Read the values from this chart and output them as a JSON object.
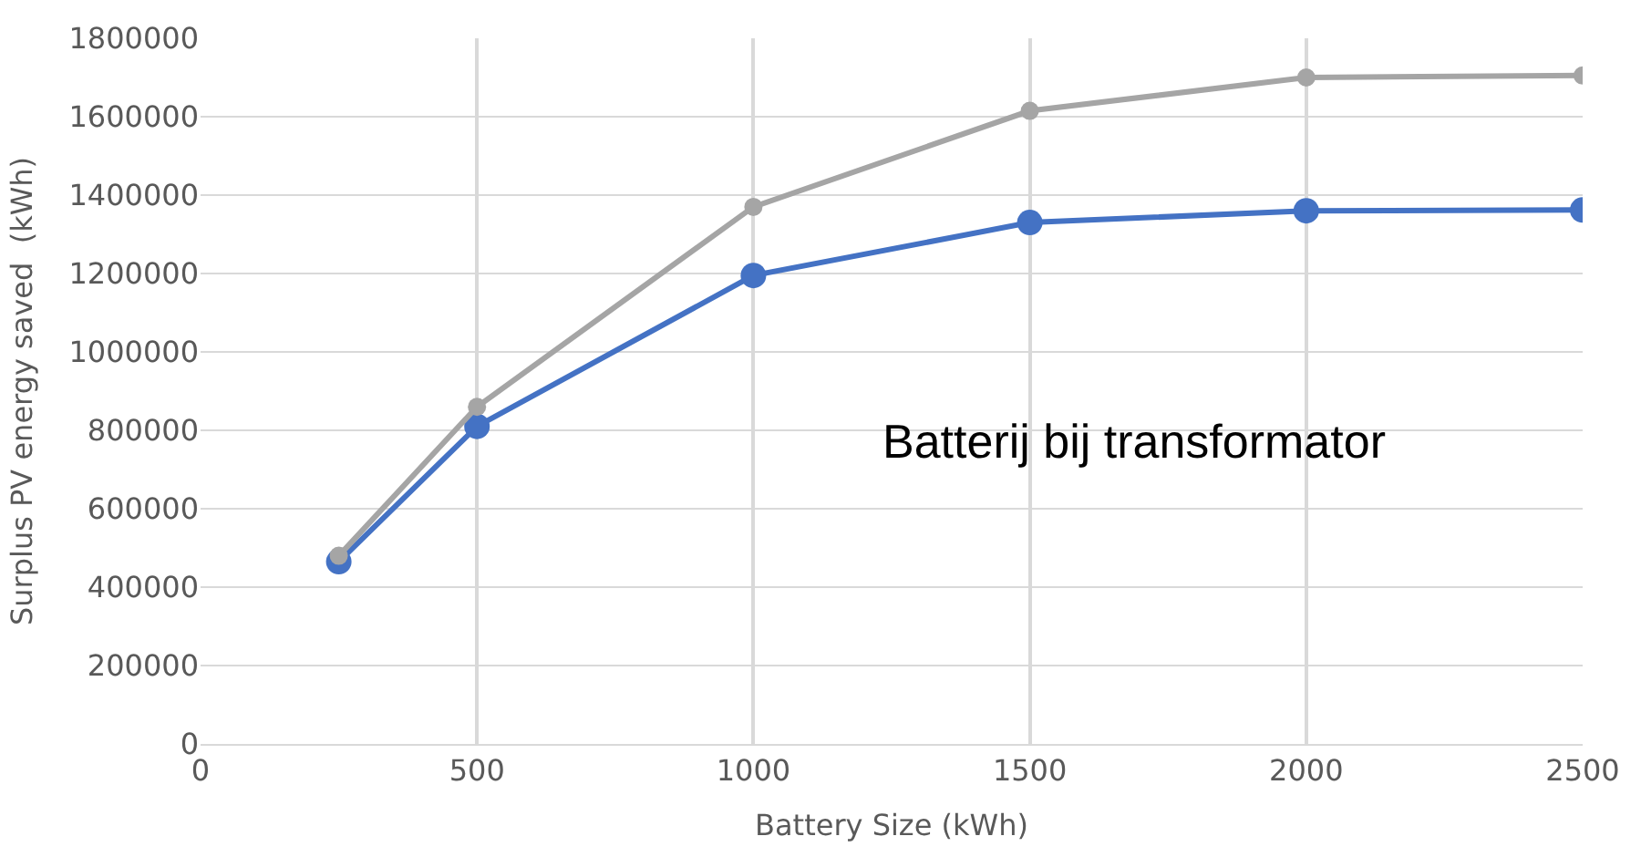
{
  "chart_data": {
    "type": "line",
    "xlabel": "Battery Size (kWh)",
    "ylabel": "Surplus PV energy saved  (kWh)",
    "x": [
      250,
      500,
      1000,
      1500,
      2000,
      2500
    ],
    "series": [
      {
        "color": "#4472c4",
        "values": [
          465000,
          810000,
          1195000,
          1330000,
          1360000,
          1362000
        ]
      },
      {
        "color": "#a5a5a5",
        "values": [
          480000,
          860000,
          1370000,
          1615000,
          1700000,
          1705000
        ]
      }
    ],
    "xlim": [
      0,
      2500
    ],
    "xticks": [
      0,
      500,
      1000,
      1500,
      2000,
      2500
    ],
    "ylim": [
      0,
      1800000
    ],
    "yticks": [
      0,
      200000,
      400000,
      600000,
      800000,
      1000000,
      1200000,
      1400000,
      1600000,
      1800000
    ],
    "grid": true,
    "marker": "circle",
    "line_style": "solid",
    "annotations": [
      "Batterij bij transformator"
    ]
  }
}
